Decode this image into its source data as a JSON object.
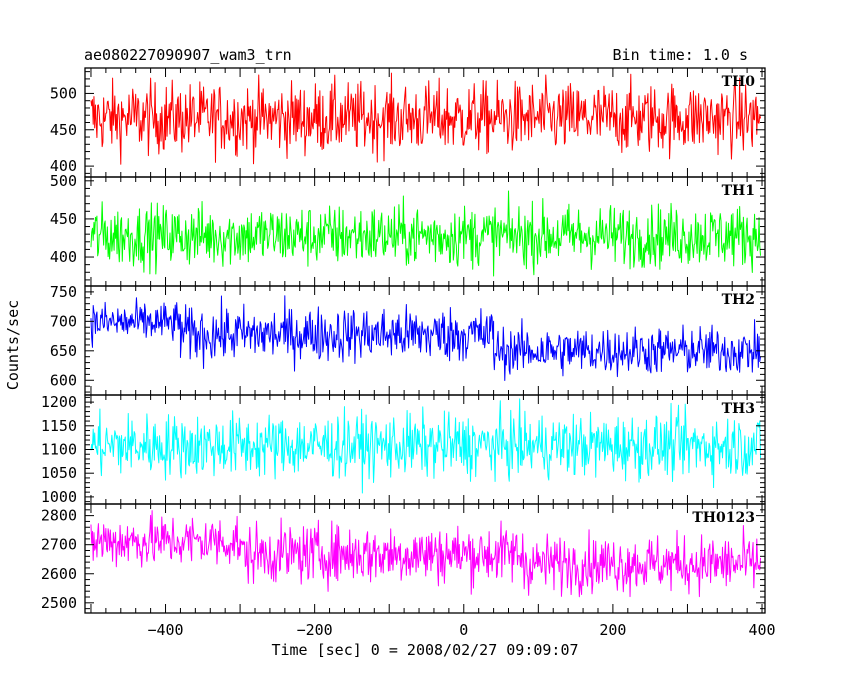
{
  "header": {
    "title": "ae080227090907_wam3_trn",
    "bin_time": "Bin time: 1.0 s"
  },
  "chart_data": {
    "type": "line",
    "xlabel": "Time [sec] 0 = 2008/02/27 09:09:07",
    "ylabel": "Counts/sec",
    "xlim": [
      -508,
      404
    ],
    "x_step": 1,
    "x_ticks": [
      -400,
      -200,
      0,
      200,
      400
    ],
    "x_tick_labels": [
      "−400",
      "−200",
      "0",
      "200",
      "400"
    ],
    "grid": false,
    "panels": [
      {
        "name": "TH0",
        "color": "#ff0000",
        "ylim": [
          385,
          535
        ],
        "y_ticks": [
          400,
          450,
          500
        ],
        "y_tick_labels": [
          "400",
          "450",
          "500"
        ],
        "segments": [
          {
            "x": [
              -500,
              398
            ],
            "mean": 466,
            "sigma": 24
          }
        ]
      },
      {
        "name": "TH1",
        "color": "#00ff00",
        "ylim": [
          362,
          505
        ],
        "y_ticks": [
          400,
          450,
          500
        ],
        "y_tick_labels": [
          "400",
          "450",
          "500"
        ],
        "segments": [
          {
            "x": [
              -500,
              398
            ],
            "mean": 428,
            "sigma": 20
          }
        ]
      },
      {
        "name": "TH2",
        "color": "#0000ff",
        "ylim": [
          575,
          760
        ],
        "y_ticks": [
          600,
          650,
          700,
          750
        ],
        "y_tick_labels": [
          "600",
          "650",
          "700",
          "750"
        ],
        "segments": [
          {
            "x": [
              -500,
              -380
            ],
            "mean": 698,
            "sigma": 17
          },
          {
            "x": [
              -380,
              40
            ],
            "mean": 678,
            "sigma": 23
          },
          {
            "x": [
              40,
              398
            ],
            "mean": 650,
            "sigma": 20
          }
        ]
      },
      {
        "name": "TH3",
        "color": "#00ffff",
        "ylim": [
          985,
          1215
        ],
        "y_ticks": [
          1000,
          1050,
          1100,
          1150,
          1200
        ],
        "y_tick_labels": [
          "1000",
          "1050",
          "1100",
          "1150",
          "1200"
        ],
        "segments": [
          {
            "x": [
              -500,
              398
            ],
            "mean": 1108,
            "sigma": 33
          }
        ]
      },
      {
        "name": "TH0123",
        "color": "#ff00ff",
        "ylim": [
          2465,
          2840
        ],
        "y_ticks": [
          2500,
          2600,
          2700,
          2800
        ],
        "y_tick_labels": [
          "2500",
          "2600",
          "2700",
          "2800"
        ],
        "segments": [
          {
            "x": [
              -500,
              -300
            ],
            "mean": 2712,
            "sigma": 45
          },
          {
            "x": [
              -300,
              80
            ],
            "mean": 2668,
            "sigma": 50
          },
          {
            "x": [
              80,
              398
            ],
            "mean": 2635,
            "sigma": 48
          }
        ]
      }
    ]
  }
}
